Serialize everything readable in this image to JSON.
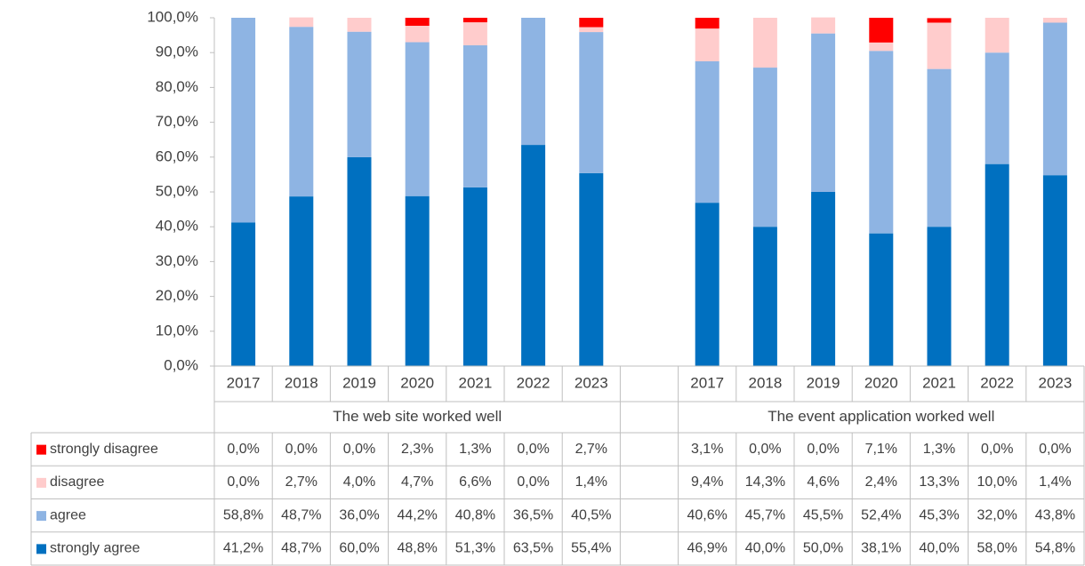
{
  "chart_data": {
    "type": "stacked_bar",
    "categories": [
      "2017",
      "2018",
      "2019",
      "2020",
      "2021",
      "2022",
      "2023",
      null,
      "2017",
      "2018",
      "2019",
      "2020",
      "2021",
      "2022",
      "2023"
    ],
    "category_groups": [
      "The web site worked well",
      "The event application worked well"
    ],
    "ylim": [
      0,
      100
    ],
    "yticks": [
      {
        "value": 0,
        "label": "0,0%"
      },
      {
        "value": 10,
        "label": "10,0%"
      },
      {
        "value": 20,
        "label": "20,0%"
      },
      {
        "value": 30,
        "label": "30,0%"
      },
      {
        "value": 40,
        "label": "40,0%"
      },
      {
        "value": 50,
        "label": "50,0%"
      },
      {
        "value": 60,
        "label": "60,0%"
      },
      {
        "value": 70,
        "label": "70,0%"
      },
      {
        "value": 80,
        "label": "80,0%"
      },
      {
        "value": 90,
        "label": "90,0%"
      },
      {
        "value": 100,
        "label": "100,0%"
      }
    ],
    "grid": false,
    "series": [
      {
        "name": "strongly disagree",
        "color": "#ff0000",
        "values": [
          0.0,
          0.0,
          0.0,
          2.3,
          1.3,
          0.0,
          2.7,
          null,
          3.1,
          0.0,
          0.0,
          7.1,
          1.3,
          0.0,
          0.0
        ],
        "value_labels": [
          "0,0%",
          "0,0%",
          "0,0%",
          "2,3%",
          "1,3%",
          "0,0%",
          "2,7%",
          null,
          "3,1%",
          "0,0%",
          "0,0%",
          "7,1%",
          "1,3%",
          "0,0%",
          "0,0%"
        ]
      },
      {
        "name": "disagree",
        "color": "#ffcccc",
        "values": [
          0.0,
          2.7,
          4.0,
          4.7,
          6.6,
          0.0,
          1.4,
          null,
          9.4,
          14.3,
          4.6,
          2.4,
          13.3,
          10.0,
          1.4
        ],
        "value_labels": [
          "0,0%",
          "2,7%",
          "4,0%",
          "4,7%",
          "6,6%",
          "0,0%",
          "1,4%",
          null,
          "9,4%",
          "14,3%",
          "4,6%",
          "2,4%",
          "13,3%",
          "10,0%",
          "1,4%"
        ]
      },
      {
        "name": "agree",
        "color": "#8eb4e3",
        "values": [
          58.8,
          48.7,
          36.0,
          44.2,
          40.8,
          36.5,
          40.5,
          null,
          40.6,
          45.7,
          45.5,
          52.4,
          45.3,
          32.0,
          43.8
        ],
        "value_labels": [
          "58,8%",
          "48,7%",
          "36,0%",
          "44,2%",
          "40,8%",
          "36,5%",
          "40,5%",
          null,
          "40,6%",
          "45,7%",
          "45,5%",
          "52,4%",
          "45,3%",
          "32,0%",
          "43,8%"
        ]
      },
      {
        "name": "strongly agree",
        "color": "#0070c0",
        "values": [
          41.2,
          48.7,
          60.0,
          48.8,
          51.3,
          63.5,
          55.4,
          null,
          46.9,
          40.0,
          50.0,
          38.1,
          40.0,
          58.0,
          54.8
        ],
        "value_labels": [
          "41,2%",
          "48,7%",
          "60,0%",
          "48,8%",
          "51,3%",
          "63,5%",
          "55,4%",
          null,
          "46,9%",
          "40,0%",
          "50,0%",
          "38,1%",
          "40,0%",
          "58,0%",
          "54,8%"
        ]
      }
    ]
  }
}
